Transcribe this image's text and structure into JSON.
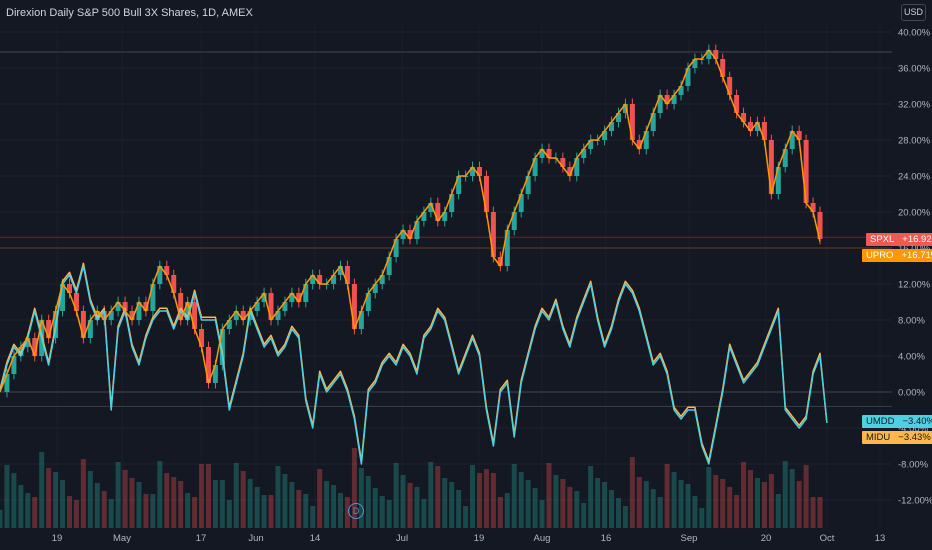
{
  "header": {
    "title": "Direxion Daily S&P 500 Bull 3X Shares, 1D, AMEX",
    "currency": "USD"
  },
  "badges": [
    {
      "symbol": "SPXL",
      "value": "+16.92%",
      "bg": "#f05a55",
      "fg": "#ffffff"
    },
    {
      "symbol": "UPRO",
      "value": "+16.71%",
      "bg": "#ff9800",
      "fg": "#ffffff"
    },
    {
      "symbol": "UMDD",
      "value": "−3.40%",
      "bg": "#4dd0e1",
      "fg": "#131722"
    },
    {
      "symbol": "MIDU",
      "value": "−3.43%",
      "bg": "#ffb74d",
      "fg": "#131722"
    }
  ],
  "event_marker": "D",
  "chart_data": {
    "type": "line",
    "y_axis_labels": [
      "40.00%",
      "36.00%",
      "32.00%",
      "28.00%",
      "24.00%",
      "20.00%",
      "16.00%",
      "12.00%",
      "8.00%",
      "4.00%",
      "0.00%",
      "-4.00%",
      "-8.00%",
      "-12.00%"
    ],
    "ylim": [
      -14,
      42
    ],
    "x_axis_labels": [
      "19",
      "May",
      "17",
      "Jun",
      "14",
      "Jul",
      "19",
      "Aug",
      "16",
      "Sep",
      "20",
      "Oct",
      "13"
    ],
    "colors": {
      "up": "#26a69a",
      "down": "#ef5350",
      "spxl": "#f05a55",
      "upro": "#ff9800",
      "umdd": "#4dd0e1",
      "midu": "#ffb74d"
    },
    "series": [
      {
        "name": "SPXL",
        "values": [
          0,
          2,
          4,
          5,
          6,
          4,
          8,
          6,
          9,
          12,
          11,
          9,
          6,
          8,
          9,
          8,
          9,
          10,
          9,
          8,
          10,
          9,
          12,
          14,
          13,
          11,
          8,
          10,
          7,
          5,
          1,
          3,
          7,
          8,
          9,
          8,
          9,
          10,
          11,
          8,
          9,
          10,
          11,
          10,
          12,
          13,
          12,
          12,
          13,
          14,
          12,
          7,
          9,
          11,
          12,
          13,
          15,
          17,
          18,
          17,
          19,
          20,
          21,
          19,
          20,
          22,
          24,
          24,
          25,
          24,
          20,
          15,
          14,
          18,
          20,
          22,
          24,
          26,
          27,
          26,
          26,
          25,
          24,
          26,
          27,
          28,
          28,
          29,
          30,
          31,
          32,
          28,
          27,
          29,
          31,
          33,
          32,
          33,
          34,
          36,
          37,
          37,
          38,
          37,
          35,
          33,
          31,
          30,
          29,
          30,
          28,
          22,
          25,
          27,
          29,
          28,
          21,
          20,
          17
        ]
      },
      {
        "name": "UPRO",
        "values": [
          0,
          2,
          4,
          5,
          6,
          4,
          8,
          6,
          9,
          12,
          11,
          9,
          6,
          8,
          9,
          8,
          9,
          10,
          9,
          8,
          10,
          9,
          12,
          14,
          13,
          11,
          8,
          10,
          7,
          5,
          1,
          3,
          7,
          8,
          9,
          8,
          9,
          10,
          11,
          8,
          9,
          10,
          11,
          10,
          12,
          13,
          12,
          12,
          13,
          14,
          12,
          7,
          9,
          11,
          12,
          13,
          15,
          17,
          18,
          17,
          19,
          20,
          21,
          19,
          20,
          22,
          24,
          24,
          25,
          24,
          20,
          15,
          14,
          18,
          20,
          22,
          24,
          26,
          27,
          26,
          26,
          25,
          24,
          26,
          27,
          28,
          28,
          29,
          30,
          31,
          32,
          28,
          27,
          29,
          31,
          33,
          32,
          33,
          34,
          36,
          37,
          37,
          38,
          37,
          35,
          33,
          31,
          30,
          29,
          30,
          28,
          22,
          25,
          27,
          29,
          28,
          21,
          20,
          16.7
        ]
      },
      {
        "name": "UMDD",
        "values": [
          0,
          3,
          5,
          4,
          6,
          9,
          6,
          3,
          7,
          12,
          13,
          11,
          14,
          10,
          8,
          9,
          -2,
          7,
          9,
          5,
          3,
          6,
          8,
          9,
          9,
          7,
          9,
          8,
          11,
          8,
          8,
          8,
          4,
          -2,
          1,
          4,
          9,
          7,
          5,
          6,
          4,
          5,
          7,
          6,
          -1,
          -4,
          2,
          0,
          1,
          2,
          0,
          -3,
          -8,
          0,
          1,
          3,
          4,
          3,
          5,
          4,
          2,
          6,
          7,
          9,
          8,
          5,
          2,
          4,
          6,
          4,
          -2,
          -6,
          0,
          1,
          -5,
          1,
          4,
          7,
          9,
          8,
          10,
          7,
          5,
          8,
          10,
          12,
          8,
          5,
          7,
          10,
          12,
          11,
          9,
          6,
          3,
          4,
          2,
          -2,
          -3,
          -2,
          -2,
          -6,
          -8,
          -4,
          0,
          5,
          3,
          1,
          2,
          3,
          5,
          7,
          9,
          -2,
          -3,
          -4,
          -3,
          2,
          4,
          -3.4
        ]
      },
      {
        "name": "MIDU",
        "values": [
          0.3,
          3.3,
          5.3,
          4.3,
          6.3,
          9.3,
          6.3,
          3.3,
          7.3,
          12.3,
          13.3,
          11.3,
          14.3,
          10.3,
          8.3,
          9.3,
          -1.7,
          7.3,
          9.3,
          5.3,
          3.3,
          6.3,
          8.3,
          9.3,
          9.3,
          7.3,
          9.3,
          8.3,
          11.3,
          8.3,
          8.3,
          8.3,
          4.3,
          -1.7,
          1.3,
          4.3,
          9.3,
          7.3,
          5.3,
          6.3,
          4.3,
          5.3,
          7.3,
          6.3,
          -0.7,
          -3.7,
          2.3,
          0.3,
          1.3,
          2.3,
          0.3,
          -2.7,
          -7.7,
          0.3,
          1.3,
          3.3,
          4.3,
          3.3,
          5.3,
          4.3,
          2.3,
          6.3,
          7.3,
          9.3,
          8.3,
          5.3,
          2.3,
          4.3,
          6.3,
          4.3,
          -1.7,
          -5.7,
          0.3,
          1.3,
          -4.7,
          1.3,
          4.3,
          7.3,
          9.3,
          8.3,
          10.3,
          7.3,
          5.3,
          8.3,
          10.3,
          12.3,
          8.3,
          5.3,
          7.3,
          10.3,
          12.3,
          11.3,
          9.3,
          6.3,
          3.3,
          4.3,
          2.3,
          -1.7,
          -2.7,
          -1.7,
          -1.7,
          -5.7,
          -7.7,
          -3.7,
          0.3,
          5.3,
          3.3,
          1.3,
          2.3,
          3.3,
          5.3,
          7.3,
          9.3,
          -1.7,
          -2.7,
          -3.7,
          -2.7,
          2.3,
          4.3,
          -3.43
        ]
      }
    ]
  }
}
